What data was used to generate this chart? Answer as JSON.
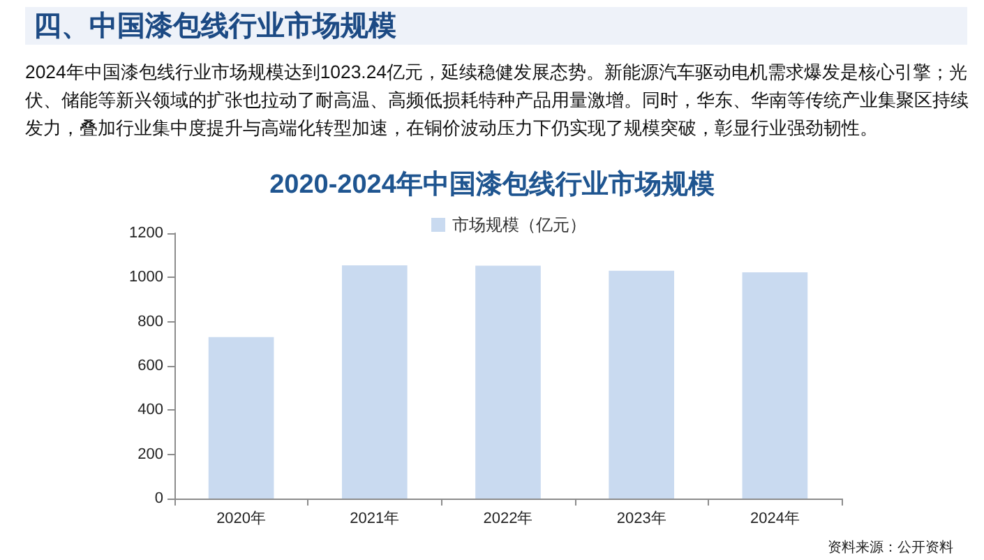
{
  "chart_data": {
    "type": "bar",
    "title": "2020-2024年中国漆包线行业市场规模",
    "categories": [
      "2020年",
      "2021年",
      "2022年",
      "2023年",
      "2024年"
    ],
    "series": [
      {
        "name": "市场规模（亿元）",
        "color": "#c9daf0",
        "values": [
          730,
          1055,
          1053,
          1030,
          1023
        ]
      }
    ],
    "ylim": [
      0,
      1200
    ],
    "yticks": [
      0,
      200,
      400,
      600,
      800,
      1000,
      1200
    ],
    "grid": false,
    "legend": "top",
    "annotations": [
      "四、中国漆包线行业市场规模",
      "2024年中国漆包线行业市场规模达到1023.24亿元，延续稳健发展态势。新能源汽车驱动电机需求爆发是核心引擎；光伏、储能等新兴领域的扩张也拉动了耐高温、高频低损耗特种产品用量激增。同时，华东、华南等传统产业集聚区持续发力，叠加行业集中度提升与高端化转型加速，在铜价波动压力下仍实现了规模突破，彰显行业强劲韧性。",
      "资料来源：公开资料"
    ]
  }
}
